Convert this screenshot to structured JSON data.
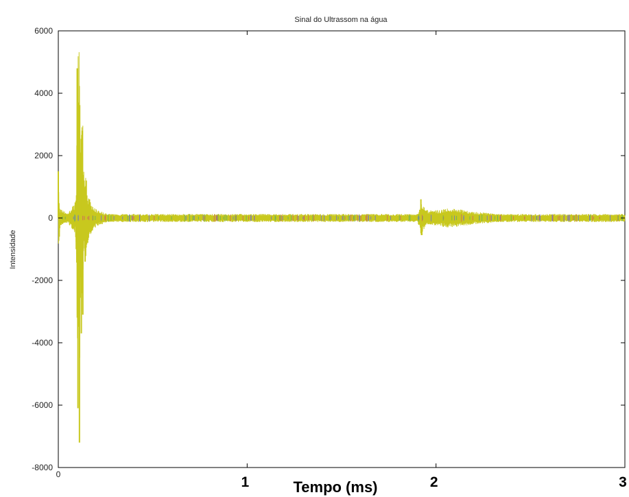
{
  "chart_data": {
    "type": "line",
    "title": "Sinal do Ultrassom na água",
    "xlabel": "Tempo (ms)",
    "ylabel": "Intensidade",
    "xlim": [
      0,
      3
    ],
    "ylim": [
      -8000,
      6000
    ],
    "x_ticks": [
      "0",
      "1",
      "2",
      "3"
    ],
    "y_ticks": [
      "6000",
      "4000",
      "2000",
      "0",
      "-2000",
      "-4000",
      "-6000",
      "-8000"
    ],
    "grid": false,
    "colors": {
      "signal": "#c8c81e",
      "noise_accents": [
        "#d06060",
        "#6b6bd8",
        "#5fb05f"
      ],
      "axes": "#000000"
    },
    "series": [
      {
        "values": [
          {
            "x": 0.0,
            "y": 1500
          },
          {
            "x": 0.005,
            "y": -600
          },
          {
            "x": 0.01,
            "y": 300
          },
          {
            "x": 0.05,
            "y": -150
          },
          {
            "x": 0.09,
            "y": 500
          },
          {
            "x": 0.095,
            "y": -1000
          },
          {
            "x": 0.1,
            "y": 4800
          },
          {
            "x": 0.104,
            "y": -6100
          },
          {
            "x": 0.108,
            "y": 3700
          },
          {
            "x": 0.112,
            "y": -7200
          },
          {
            "x": 0.118,
            "y": 2100
          },
          {
            "x": 0.122,
            "y": -3700
          },
          {
            "x": 0.126,
            "y": 2800
          },
          {
            "x": 0.13,
            "y": -3100
          },
          {
            "x": 0.136,
            "y": 1200
          },
          {
            "x": 0.142,
            "y": -1400
          },
          {
            "x": 0.148,
            "y": 1200
          },
          {
            "x": 0.155,
            "y": -800
          },
          {
            "x": 0.165,
            "y": 600
          },
          {
            "x": 0.18,
            "y": -400
          },
          {
            "x": 0.2,
            "y": 300
          },
          {
            "x": 0.25,
            "y": -150
          },
          {
            "x": 0.3,
            "y": 100
          },
          {
            "x": 0.4,
            "y": -60
          },
          {
            "x": 1.0,
            "y": 30
          },
          {
            "x": 1.9,
            "y": -40
          },
          {
            "x": 1.92,
            "y": 600
          },
          {
            "x": 1.925,
            "y": -550
          },
          {
            "x": 1.94,
            "y": 300
          },
          {
            "x": 1.96,
            "y": -250
          },
          {
            "x": 2.0,
            "y": 250
          },
          {
            "x": 2.05,
            "y": -300
          },
          {
            "x": 2.1,
            "y": 300
          },
          {
            "x": 2.2,
            "y": -200
          },
          {
            "x": 2.3,
            "y": 150
          },
          {
            "x": 2.4,
            "y": -80
          },
          {
            "x": 2.6,
            "y": 60
          },
          {
            "x": 3.0,
            "y": -40
          }
        ]
      }
    ]
  }
}
